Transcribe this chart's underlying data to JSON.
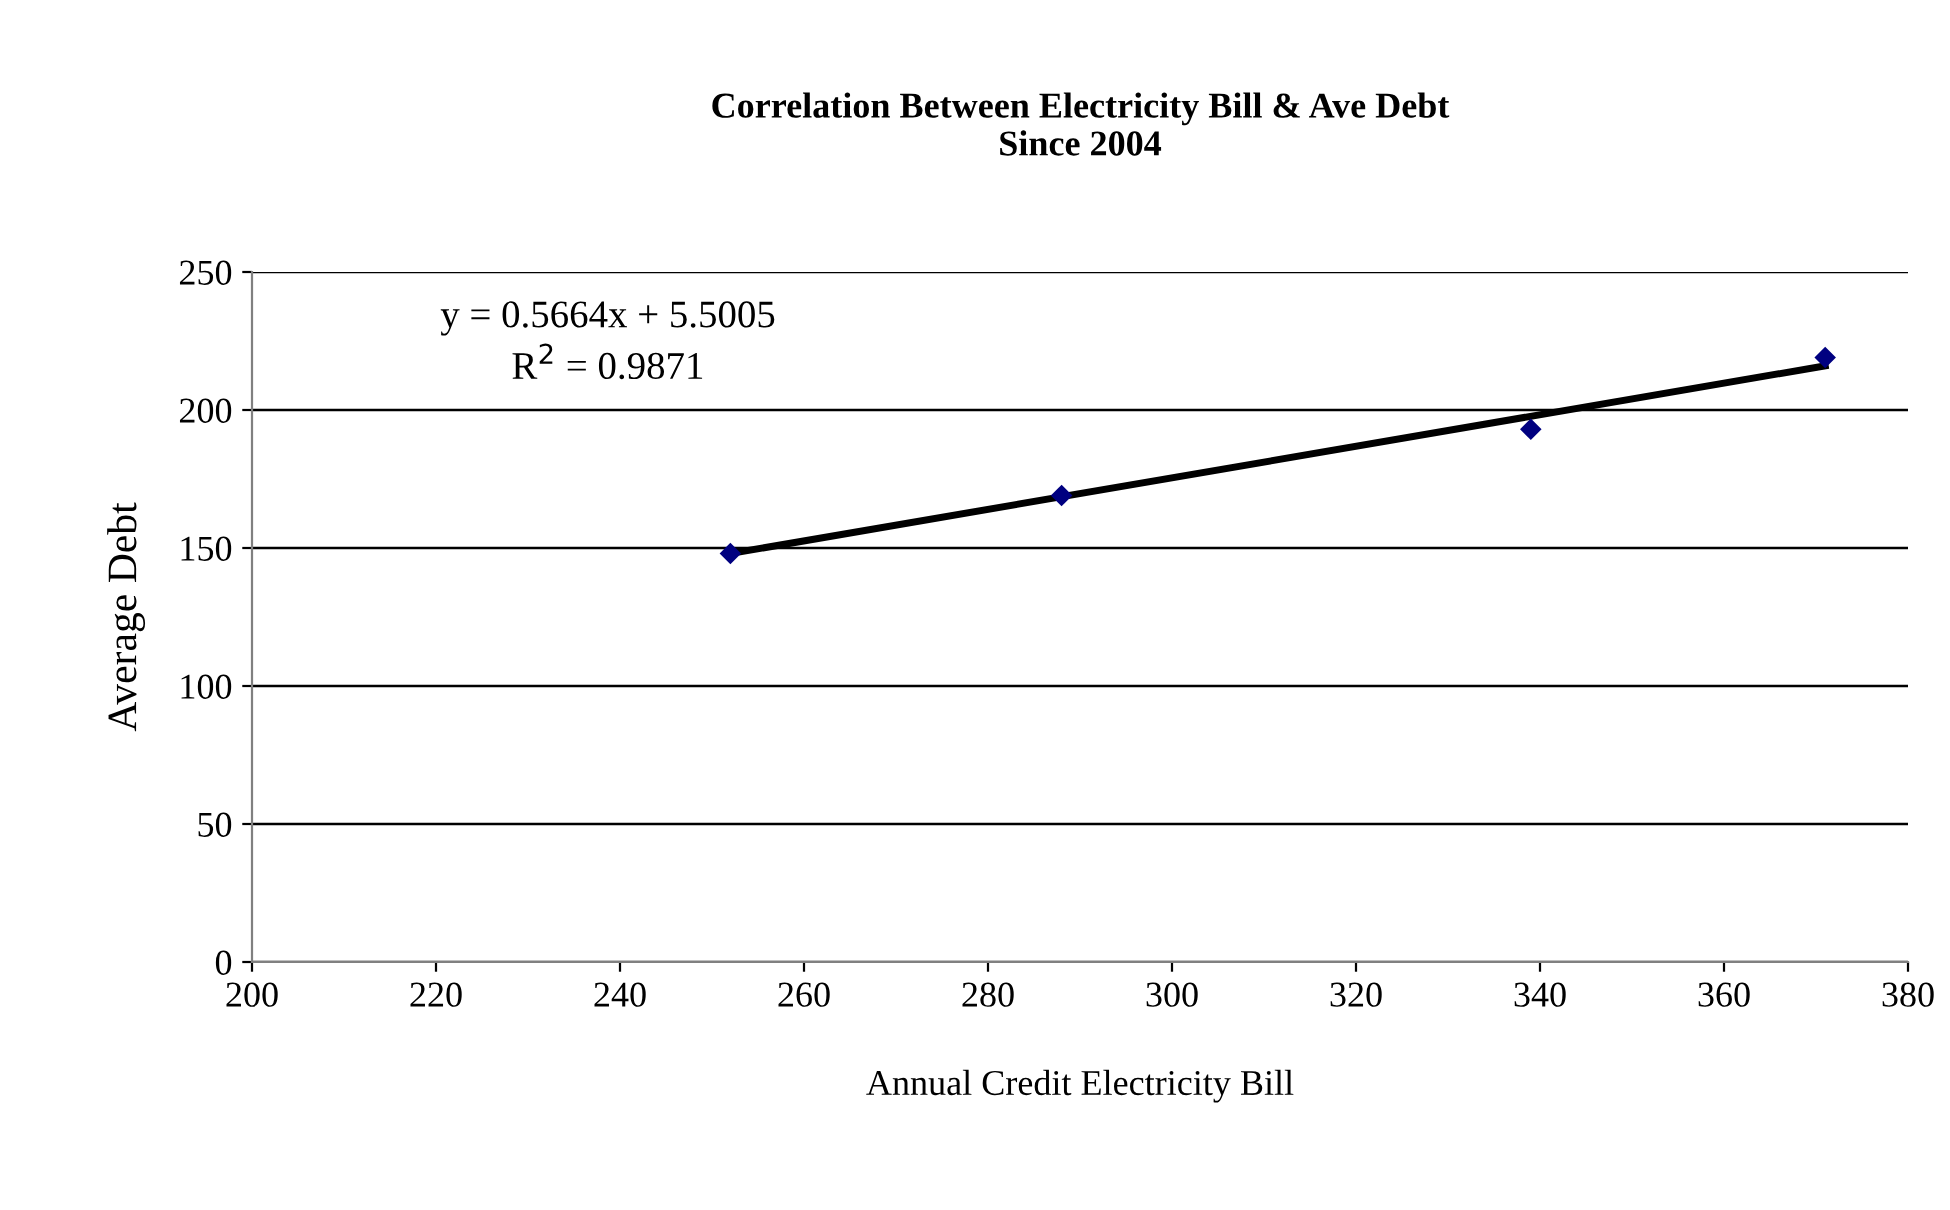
{
  "chart_data": {
    "type": "scatter",
    "title": "Correlation Between Electricity Bill & Ave Debt\nSince 2004",
    "xlabel": "Annual Credit Electricity Bill",
    "ylabel": "Average Debt",
    "x": [
      252,
      288,
      339,
      371
    ],
    "series": [
      {
        "color": "#000080",
        "marker": "diamond",
        "values": [
          148,
          169,
          193,
          219
        ]
      },
      {
        "type": "line",
        "color": "#000000",
        "x": [
          252,
          371
        ],
        "values": [
          148,
          216
        ]
      }
    ],
    "annotations": [
      "y = 0.5664x + 5.5005",
      "R$^{2}$ = 0.9871"
    ],
    "xlim": [
      200,
      380
    ],
    "xticks": [
      200,
      220,
      240,
      260,
      280,
      300,
      320,
      340,
      360,
      380
    ],
    "ylim": [
      0,
      250
    ],
    "yticks": [
      0,
      50,
      100,
      150,
      200,
      250
    ],
    "grid": "y",
    "legend": false
  }
}
